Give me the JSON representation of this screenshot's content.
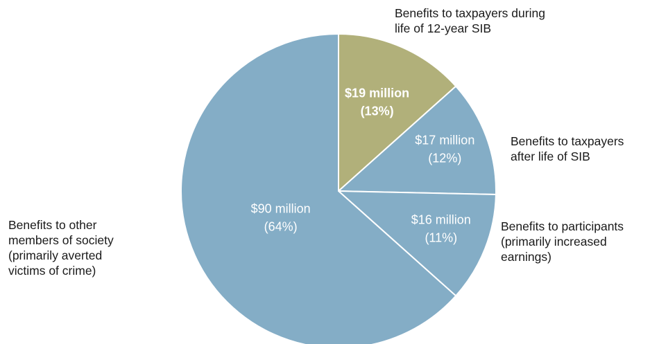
{
  "chart_data": {
    "type": "pie",
    "slices": [
      {
        "value_label": "$19 million",
        "pct_label": "(13%)",
        "value": 19,
        "percent": 13,
        "color": "#b1b07a",
        "emphasis": true,
        "label_lines": [
          "Benefits to taxpayers during",
          "life of 12-year SIB"
        ]
      },
      {
        "value_label": "$17 million",
        "pct_label": "(12%)",
        "value": 17,
        "percent": 12,
        "color": "#84adc6",
        "emphasis": false,
        "label_lines": [
          "Benefits to taxpayers",
          "after life of SIB"
        ]
      },
      {
        "value_label": "$16 million",
        "pct_label": "(11%)",
        "value": 16,
        "percent": 11,
        "color": "#84adc6",
        "emphasis": false,
        "label_lines": [
          "Benefits to participants",
          "(primarily increased",
          "earnings)"
        ]
      },
      {
        "value_label": "$90 million",
        "pct_label": "(64%)",
        "value": 90,
        "percent": 64,
        "color": "#84adc6",
        "emphasis": false,
        "label_lines": [
          "Benefits to other",
          "members of society",
          "(primarily averted",
          "victims of crime)"
        ]
      }
    ]
  }
}
